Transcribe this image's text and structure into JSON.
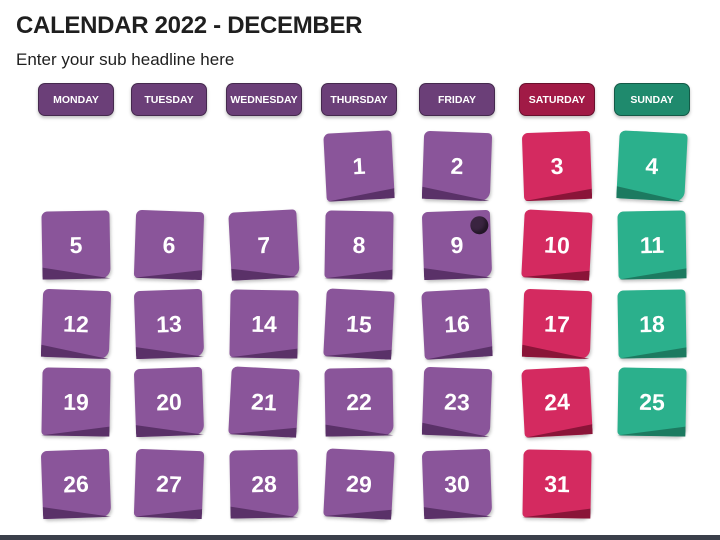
{
  "title": "CALENDAR 2022 - DECEMBER",
  "subtitle": "Enter your sub headline here",
  "colors": {
    "weekday": "#6b3f78",
    "weekday_note": "#8a559a",
    "weekday_note_dark": "#5a3168",
    "saturday": "#a11a46",
    "saturday_note": "#d42a60",
    "saturday_note_dark": "#8a1438",
    "sunday": "#1f8a6d",
    "sunday_note": "#2bb08c",
    "sunday_note_dark": "#1c7a60"
  },
  "weekdays": [
    "MONDAY",
    "TUESDAY",
    "WEDNESDAY",
    "THURSDAY",
    "FRIDAY",
    "SATURDAY",
    "SUNDAY"
  ],
  "days": [
    {
      "day": "1",
      "col": 3,
      "row": 0
    },
    {
      "day": "2",
      "col": 4,
      "row": 0
    },
    {
      "day": "3",
      "col": 5,
      "row": 0
    },
    {
      "day": "4",
      "col": 6,
      "row": 0
    },
    {
      "day": "5",
      "col": 0,
      "row": 1
    },
    {
      "day": "6",
      "col": 1,
      "row": 1
    },
    {
      "day": "7",
      "col": 2,
      "row": 1
    },
    {
      "day": "8",
      "col": 3,
      "row": 1
    },
    {
      "day": "9",
      "col": 4,
      "row": 1
    },
    {
      "day": "10",
      "col": 5,
      "row": 1
    },
    {
      "day": "11",
      "col": 6,
      "row": 1
    },
    {
      "day": "12",
      "col": 0,
      "row": 2
    },
    {
      "day": "13",
      "col": 1,
      "row": 2
    },
    {
      "day": "14",
      "col": 2,
      "row": 2
    },
    {
      "day": "15",
      "col": 3,
      "row": 2
    },
    {
      "day": "16",
      "col": 4,
      "row": 2
    },
    {
      "day": "17",
      "col": 5,
      "row": 2
    },
    {
      "day": "18",
      "col": 6,
      "row": 2
    },
    {
      "day": "19",
      "col": 0,
      "row": 3
    },
    {
      "day": "20",
      "col": 1,
      "row": 3
    },
    {
      "day": "21",
      "col": 2,
      "row": 3
    },
    {
      "day": "22",
      "col": 3,
      "row": 3
    },
    {
      "day": "23",
      "col": 4,
      "row": 3
    },
    {
      "day": "24",
      "col": 5,
      "row": 3
    },
    {
      "day": "25",
      "col": 6,
      "row": 3
    },
    {
      "day": "26",
      "col": 0,
      "row": 4
    },
    {
      "day": "27",
      "col": 1,
      "row": 4
    },
    {
      "day": "28",
      "col": 2,
      "row": 4
    },
    {
      "day": "29",
      "col": 3,
      "row": 4
    },
    {
      "day": "30",
      "col": 4,
      "row": 4
    },
    {
      "day": "31",
      "col": 5,
      "row": 4
    }
  ]
}
